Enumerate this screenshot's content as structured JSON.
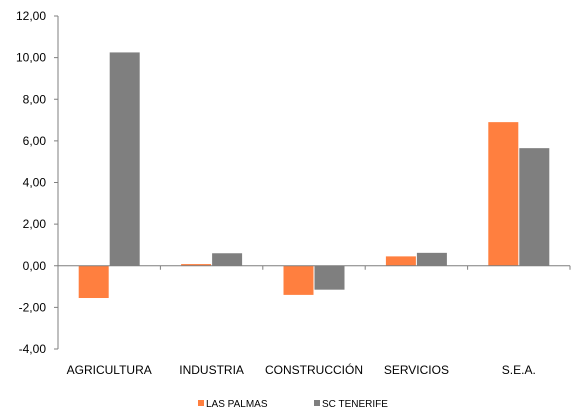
{
  "chart_data": {
    "type": "bar",
    "title": "",
    "xlabel": "",
    "ylabel": "",
    "categories": [
      "AGRICULTURA",
      "INDUSTRIA",
      "CONSTRUCCIÓN",
      "SERVICIOS",
      "S.E.A."
    ],
    "series": [
      {
        "name": "LAS PALMAS",
        "color": "#ff7f3f",
        "values": [
          -1.55,
          0.08,
          -1.4,
          0.45,
          6.9
        ]
      },
      {
        "name": "SC TENERIFE",
        "color": "#7f7f7f",
        "values": [
          10.25,
          0.6,
          -1.15,
          0.62,
          5.65
        ]
      }
    ],
    "ylim": [
      -4,
      12
    ],
    "yticks": [
      -4,
      -2,
      0,
      2,
      4,
      6,
      8,
      10,
      12
    ],
    "ytick_labels": [
      "-4,00",
      "-2,00",
      "0,00",
      "2,00",
      "4,00",
      "6,00",
      "8,00",
      "10,00",
      "12,00"
    ],
    "grid": false,
    "legend_position": "bottom"
  }
}
